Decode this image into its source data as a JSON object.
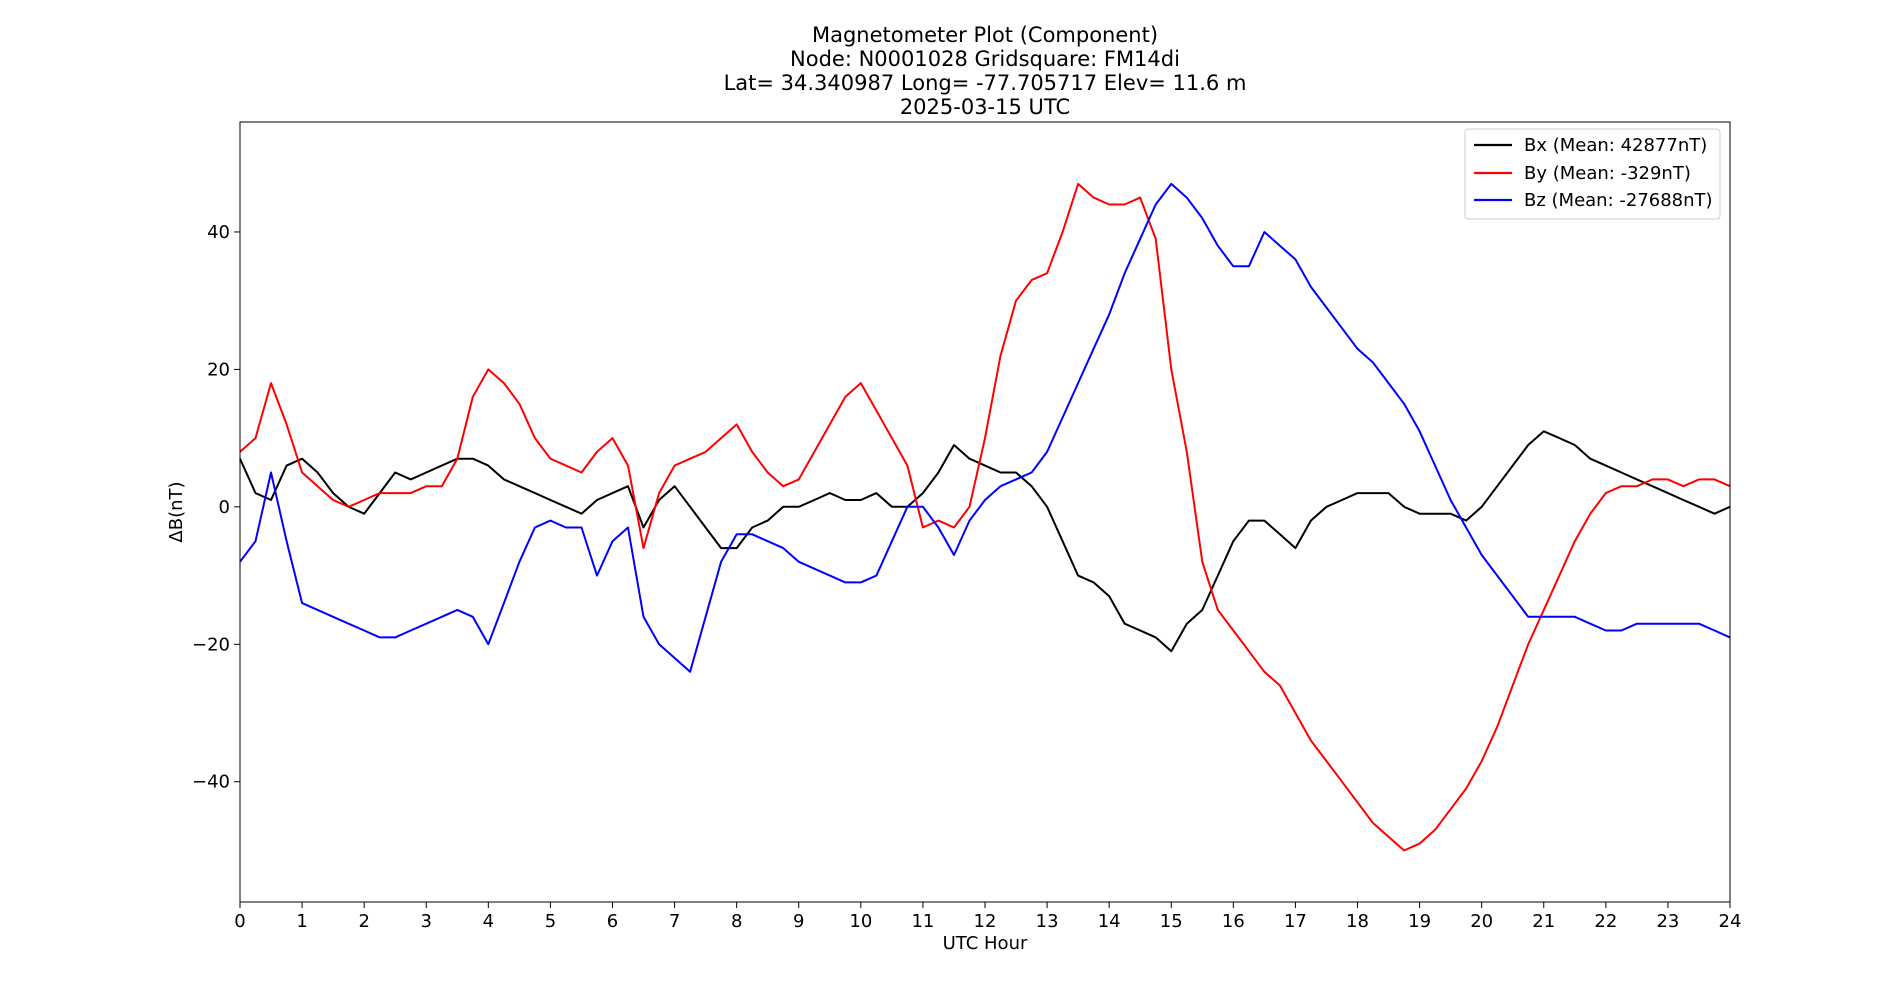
{
  "chart_data": {
    "type": "line",
    "title_lines": [
      "Magnetometer Plot (Component)",
      "Node:  N0001028     Gridsquare:  FM14di",
      "Lat= 34.340987    Long= -77.705717    Elev= 11.6 m",
      "2025-03-15  UTC"
    ],
    "xlabel": "UTC Hour",
    "ylabel": "ΔB(nT)",
    "xlim": [
      0,
      24
    ],
    "ylim": [
      -57.5,
      56
    ],
    "x_ticks": [
      0,
      1,
      2,
      3,
      4,
      5,
      6,
      7,
      8,
      9,
      10,
      11,
      12,
      13,
      14,
      15,
      16,
      17,
      18,
      19,
      20,
      21,
      22,
      23,
      24
    ],
    "y_ticks": [
      -40,
      -20,
      0,
      20,
      40
    ],
    "y_tick_labels": [
      "−40",
      "−20",
      "0",
      "20",
      "40"
    ],
    "grid": false,
    "legend_position": "top-right",
    "series": [
      {
        "name": "Bx (Mean: 42877nT)",
        "color": "#000000",
        "x": [
          0,
          0.25,
          0.5,
          0.75,
          1,
          1.25,
          1.5,
          1.75,
          2,
          2.25,
          2.5,
          2.75,
          3,
          3.25,
          3.5,
          3.75,
          4,
          4.25,
          4.5,
          4.75,
          5,
          5.25,
          5.5,
          5.75,
          6,
          6.25,
          6.5,
          6.75,
          7,
          7.25,
          7.5,
          7.75,
          8,
          8.25,
          8.5,
          8.75,
          9,
          9.25,
          9.5,
          9.75,
          10,
          10.25,
          10.5,
          10.75,
          11,
          11.25,
          11.5,
          11.75,
          12,
          12.25,
          12.5,
          12.75,
          13,
          13.25,
          13.5,
          13.75,
          14,
          14.25,
          14.5,
          14.75,
          15,
          15.25,
          15.5,
          15.75,
          16,
          16.25,
          16.5,
          16.75,
          17,
          17.25,
          17.5,
          17.75,
          18,
          18.25,
          18.5,
          18.75,
          19,
          19.25,
          19.5,
          19.75,
          20,
          20.25,
          20.5,
          20.75,
          21,
          21.25,
          21.5,
          21.75,
          22,
          22.25,
          22.5,
          22.75,
          23,
          23.25,
          23.5,
          23.75,
          24
        ],
        "y": [
          7,
          2,
          1,
          6,
          7,
          5,
          2,
          0,
          -1,
          2,
          5,
          4,
          5,
          6,
          7,
          7,
          6,
          4,
          3,
          2,
          1,
          0,
          -1,
          1,
          2,
          3,
          -3,
          1,
          3,
          0,
          -3,
          -6,
          -6,
          -3,
          -2,
          0,
          0,
          1,
          2,
          1,
          1,
          2,
          0,
          0,
          2,
          5,
          9,
          7,
          6,
          5,
          5,
          3,
          0,
          -5,
          -10,
          -11,
          -13,
          -17,
          -18,
          -19,
          -21,
          -17,
          -15,
          -10,
          -5,
          -2,
          -2,
          -4,
          -6,
          -2,
          0,
          1,
          2,
          2,
          2,
          0,
          -1,
          -1,
          -1,
          -2,
          0,
          3,
          6,
          9,
          11,
          10,
          9,
          7,
          6,
          5,
          4,
          3,
          2,
          1,
          0,
          -1,
          0
        ]
      },
      {
        "name": "By (Mean: -329nT)",
        "color": "#ff0000",
        "x": [
          0,
          0.25,
          0.5,
          0.75,
          1,
          1.25,
          1.5,
          1.75,
          2,
          2.25,
          2.5,
          2.75,
          3,
          3.25,
          3.5,
          3.75,
          4,
          4.25,
          4.5,
          4.75,
          5,
          5.25,
          5.5,
          5.75,
          6,
          6.25,
          6.5,
          6.75,
          7,
          7.25,
          7.5,
          7.75,
          8,
          8.25,
          8.5,
          8.75,
          9,
          9.25,
          9.5,
          9.75,
          10,
          10.25,
          10.5,
          10.75,
          11,
          11.25,
          11.5,
          11.75,
          12,
          12.25,
          12.5,
          12.75,
          13,
          13.25,
          13.5,
          13.75,
          14,
          14.25,
          14.5,
          14.75,
          15,
          15.25,
          15.5,
          15.75,
          16,
          16.25,
          16.5,
          16.75,
          17,
          17.25,
          17.5,
          17.75,
          18,
          18.25,
          18.5,
          18.75,
          19,
          19.25,
          19.5,
          19.75,
          20,
          20.25,
          20.5,
          20.75,
          21,
          21.25,
          21.5,
          21.75,
          22,
          22.25,
          22.5,
          22.75,
          23,
          23.25,
          23.5,
          23.75,
          24
        ],
        "y": [
          8,
          10,
          18,
          12,
          5,
          3,
          1,
          0,
          1,
          2,
          2,
          2,
          3,
          3,
          7,
          16,
          20,
          18,
          15,
          10,
          7,
          6,
          5,
          8,
          10,
          6,
          -6,
          2,
          6,
          7,
          8,
          10,
          12,
          8,
          5,
          3,
          4,
          8,
          12,
          16,
          18,
          14,
          10,
          6,
          -3,
          -2,
          -3,
          0,
          10,
          22,
          30,
          33,
          34,
          40,
          47,
          45,
          44,
          44,
          45,
          39,
          20,
          8,
          -8,
          -15,
          -18,
          -21,
          -24,
          -26,
          -30,
          -34,
          -37,
          -40,
          -43,
          -46,
          -48,
          -50,
          -49,
          -47,
          -44,
          -41,
          -37,
          -32,
          -26,
          -20,
          -15,
          -10,
          -5,
          -1,
          2,
          3,
          3,
          4,
          4,
          3,
          4,
          4,
          3
        ]
      },
      {
        "name": "Bz (Mean: -27688nT)",
        "color": "#0000ff",
        "x": [
          0,
          0.25,
          0.5,
          0.75,
          1,
          1.25,
          1.5,
          1.75,
          2,
          2.25,
          2.5,
          2.75,
          3,
          3.25,
          3.5,
          3.75,
          4,
          4.25,
          4.5,
          4.75,
          5,
          5.25,
          5.5,
          5.75,
          6,
          6.25,
          6.5,
          6.75,
          7,
          7.25,
          7.5,
          7.75,
          8,
          8.25,
          8.5,
          8.75,
          9,
          9.25,
          9.5,
          9.75,
          10,
          10.25,
          10.5,
          10.75,
          11,
          11.25,
          11.5,
          11.75,
          12,
          12.25,
          12.5,
          12.75,
          13,
          13.25,
          13.5,
          13.75,
          14,
          14.25,
          14.5,
          14.75,
          15,
          15.25,
          15.5,
          15.75,
          16,
          16.25,
          16.5,
          16.75,
          17,
          17.25,
          17.5,
          17.75,
          18,
          18.25,
          18.5,
          18.75,
          19,
          19.25,
          19.5,
          19.75,
          20,
          20.25,
          20.5,
          20.75,
          21,
          21.25,
          21.5,
          21.75,
          22,
          22.25,
          22.5,
          22.75,
          23,
          23.25,
          23.5,
          23.75,
          24
        ],
        "y": [
          -8,
          -5,
          5,
          -5,
          -14,
          -15,
          -16,
          -17,
          -18,
          -19,
          -19,
          -18,
          -17,
          -16,
          -15,
          -16,
          -20,
          -14,
          -8,
          -3,
          -2,
          -3,
          -3,
          -10,
          -5,
          -3,
          -16,
          -20,
          -22,
          -24,
          -16,
          -8,
          -4,
          -4,
          -5,
          -6,
          -8,
          -9,
          -10,
          -11,
          -11,
          -10,
          -5,
          0,
          0,
          -3,
          -7,
          -2,
          1,
          3,
          4,
          5,
          8,
          13,
          18,
          23,
          28,
          34,
          39,
          44,
          47,
          45,
          42,
          38,
          35,
          35,
          40,
          38,
          36,
          32,
          29,
          26,
          23,
          21,
          18,
          15,
          11,
          6,
          1,
          -3,
          -7,
          -10,
          -13,
          -16,
          -16,
          -16,
          -16,
          -17,
          -18,
          -18,
          -17,
          -17,
          -17,
          -17,
          -17,
          -18,
          -19
        ]
      }
    ]
  }
}
